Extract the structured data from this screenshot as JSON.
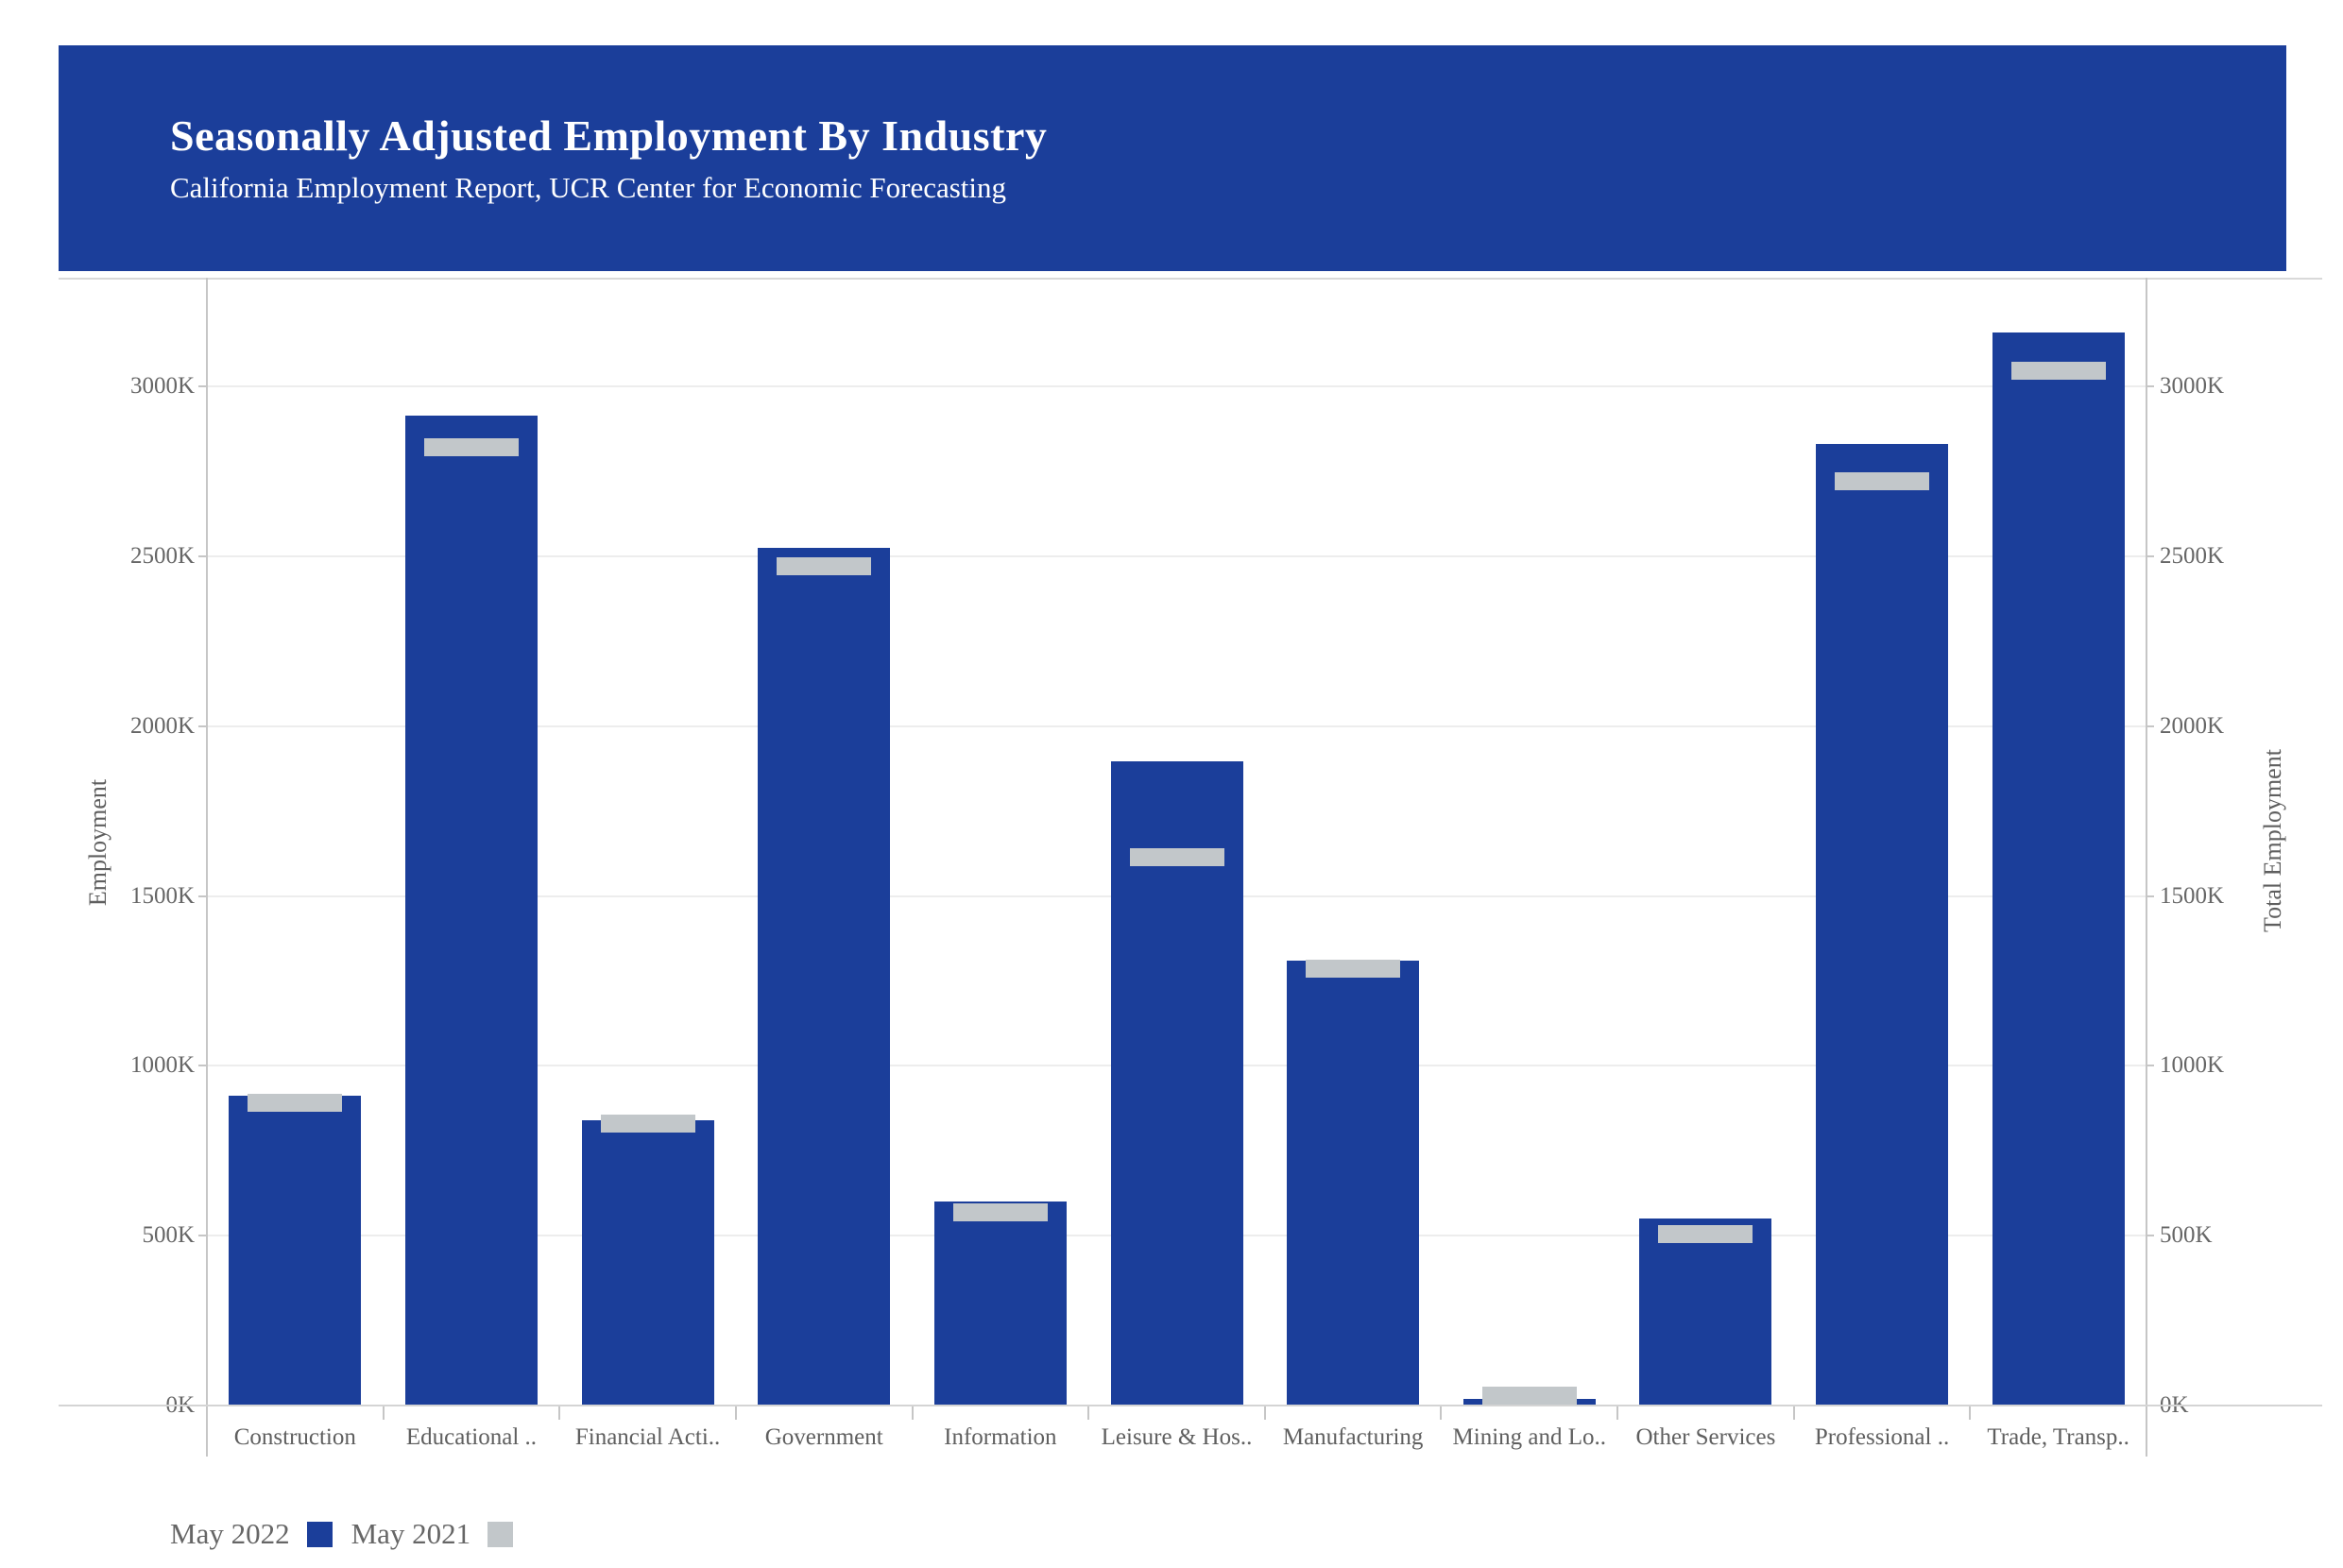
{
  "header": {
    "title": "Seasonally Adjusted Employment By Industry",
    "subtitle": "California Employment Report, UCR Center for Economic Forecasting",
    "bg_color": "#1B3E9A",
    "text_color": "#FFFFFF"
  },
  "chart_data": {
    "type": "bar",
    "title": "Seasonally Adjusted Employment By Industry",
    "subtitle": "California Employment Report, UCR Center for Economic Forecasting",
    "categories": [
      "Construction",
      "Educational ..",
      "Financial Acti..",
      "Government",
      "Information",
      "Leisure & Hos..",
      "Manufacturing",
      "Mining and Lo..",
      "Other Services",
      "Professional ..",
      "Trade, Transp.."
    ],
    "series": [
      {
        "name": "May 2022",
        "mark": "bar",
        "color": "#1B3E9A",
        "values_thousands": [
          911,
          2915,
          840,
          2525,
          600,
          1895,
          1310,
          20,
          550,
          2830,
          3160
        ]
      },
      {
        "name": "May 2021",
        "mark": "tick",
        "color": "#C2C7CA",
        "values_thousands": [
          892,
          2820,
          830,
          2470,
          568,
          1614,
          1285,
          29,
          506,
          2720,
          3045
        ]
      }
    ],
    "ylabel": "Employment",
    "ylabel_right": "Total Employment",
    "unit": "thousands",
    "ylim_thousands": [
      0,
      3320
    ],
    "yticks": [
      {
        "value": 0,
        "label": "0K"
      },
      {
        "value": 500,
        "label": "500K"
      },
      {
        "value": 1000,
        "label": "1000K"
      },
      {
        "value": 1500,
        "label": "1500K"
      },
      {
        "value": 2000,
        "label": "2000K"
      },
      {
        "value": 2500,
        "label": "2500K"
      },
      {
        "value": 3000,
        "label": "3000K"
      }
    ],
    "grid": true,
    "legend_position": "bottom-left",
    "legend": [
      {
        "label": "May 2022",
        "color": "#1B3E9A"
      },
      {
        "label": "May 2021",
        "color": "#C2C7CA"
      }
    ]
  }
}
